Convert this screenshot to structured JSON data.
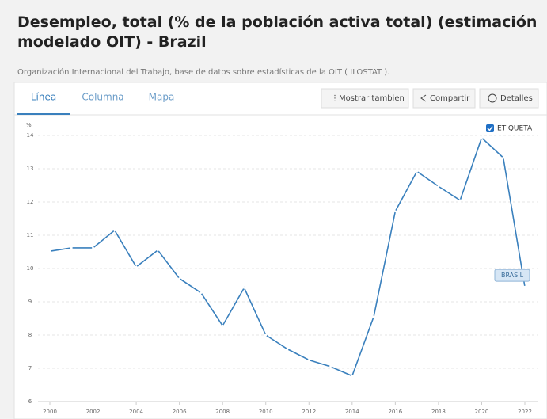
{
  "header": {
    "title": "Desempleo, total (% de la población activa total) (estimación modelado OIT) - Brazil",
    "source": "Organización Internacional del Trabajo, base de datos sobre estadísticas de la OIT ( ILOSTAT )."
  },
  "tabs": [
    "Línea",
    "Columna",
    "Mapa"
  ],
  "buttons": [
    "Mostrar tambien",
    "Compartir",
    "Detalles"
  ],
  "chart_data": {
    "type": "line",
    "y_label": "%",
    "legend_label": "ETIQUETA",
    "x": [
      2000,
      2001,
      2002,
      2003,
      2004,
      2005,
      2006,
      2007,
      2008,
      2009,
      2010,
      2011,
      2012,
      2013,
      2014,
      2015,
      2016,
      2017,
      2018,
      2019,
      2020,
      2021,
      2022
    ],
    "series": [
      {
        "name": "BRASIL",
        "color": "#3a80bd",
        "values": [
          10.52,
          10.62,
          10.62,
          11.15,
          10.05,
          10.55,
          9.7,
          9.27,
          8.28,
          9.42,
          8.0,
          7.58,
          7.25,
          7.05,
          6.77,
          8.55,
          11.72,
          12.92,
          12.47,
          12.05,
          13.93,
          13.33,
          9.45
        ]
      }
    ],
    "xlim": [
      2000,
      2022
    ],
    "xticks": [
      2000,
      2002,
      2004,
      2006,
      2008,
      2010,
      2012,
      2014,
      2016,
      2018,
      2020,
      2022
    ],
    "ylim": [
      6,
      14
    ],
    "yticks": [
      6,
      7,
      8,
      9,
      10,
      11,
      12,
      13,
      14
    ],
    "grid": true
  }
}
